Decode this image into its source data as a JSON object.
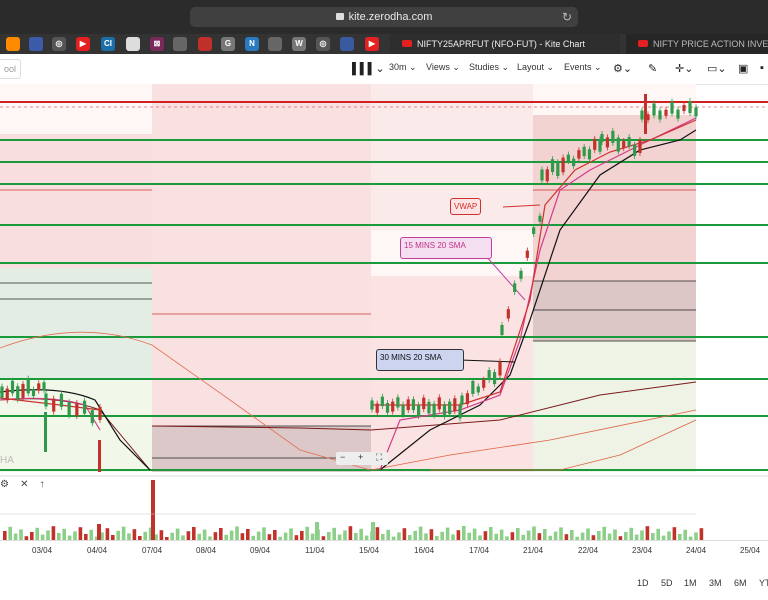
{
  "browser": {
    "url": "kite.zerodha.com",
    "tabs": [
      {
        "title": "NIFTY25APRFUT (NFO-FUT) - Kite Chart",
        "active": true
      },
      {
        "title": "NIFTY PRICE ACTION INVEST",
        "active": false
      }
    ],
    "bookmarks": [
      {
        "icon": "chart-icon",
        "color": "#ff8a00",
        "text": ""
      },
      {
        "icon": "save-icon",
        "color": "#3b5ba9",
        "text": ""
      },
      {
        "icon": "circle-icon",
        "color": "#555555",
        "text": "◎"
      },
      {
        "icon": "youtube-icon",
        "color": "#e52020",
        "text": "▶"
      },
      {
        "icon": "ci-icon",
        "color": "#1a6fa8",
        "text": "CI"
      },
      {
        "icon": "doc-icon",
        "color": "#dddddd",
        "text": ""
      },
      {
        "icon": "network-icon",
        "color": "#7a2a5a",
        "text": "⊠"
      },
      {
        "icon": "bag-icon",
        "color": "#666666",
        "text": ""
      },
      {
        "icon": "flag-icon",
        "color": "#c0302a",
        "text": ""
      },
      {
        "icon": "g-icon",
        "color": "#777777",
        "text": "G"
      },
      {
        "icon": "n-icon",
        "color": "#2a7ac0",
        "text": "N"
      },
      {
        "icon": "bag2-icon",
        "color": "#666666",
        "text": ""
      },
      {
        "icon": "w-icon",
        "color": "#777777",
        "text": "W"
      },
      {
        "icon": "circle2-icon",
        "color": "#555555",
        "text": "◎"
      },
      {
        "icon": "globe-icon",
        "color": "#3a5aa0",
        "text": ""
      },
      {
        "icon": "youtube2-icon",
        "color": "#e52020",
        "text": "▶"
      }
    ]
  },
  "toolbar": {
    "search_placeholder": "ool",
    "interval": "30m",
    "views": "Views",
    "studies": "Studies",
    "layout": "Layout",
    "events": "Events"
  },
  "annotations": {
    "vwap": "VWAP",
    "sma15": "15 MINS 20 SMA",
    "sma30": "30 MINS 20 SMA"
  },
  "zoom": {
    "minus": "−",
    "plus": "+",
    "fit": "⛶"
  },
  "watermark": "HA",
  "x_labels": [
    "03/04",
    "04/04",
    "07/04",
    "08/04",
    "09/04",
    "11/04",
    "15/04",
    "16/04",
    "17/04",
    "21/04",
    "22/04",
    "23/04",
    "24/04",
    "25/04"
  ],
  "ranges": [
    "1D",
    "5D",
    "1M",
    "3M",
    "6M",
    "YT"
  ],
  "colors": {
    "up": "#2e9a4a",
    "down": "#c0322a",
    "vwap": "#d03030",
    "sma15": "#d43a8a",
    "sma30": "#111111",
    "level": "#1a9a3a"
  },
  "chart_data": {
    "type": "candlestick",
    "instrument": "NIFTY25APRFUT",
    "interval": "30m",
    "x": [
      "03/04",
      "04/04",
      "07/04",
      "08/04",
      "09/04",
      "11/04",
      "15/04",
      "16/04",
      "17/04",
      "21/04",
      "22/04",
      "23/04",
      "24/04",
      "25/04"
    ],
    "series": [
      {
        "name": "VWAP"
      },
      {
        "name": "15 MINS 20 SMA"
      },
      {
        "name": "30 MINS 20 SMA"
      }
    ]
  }
}
